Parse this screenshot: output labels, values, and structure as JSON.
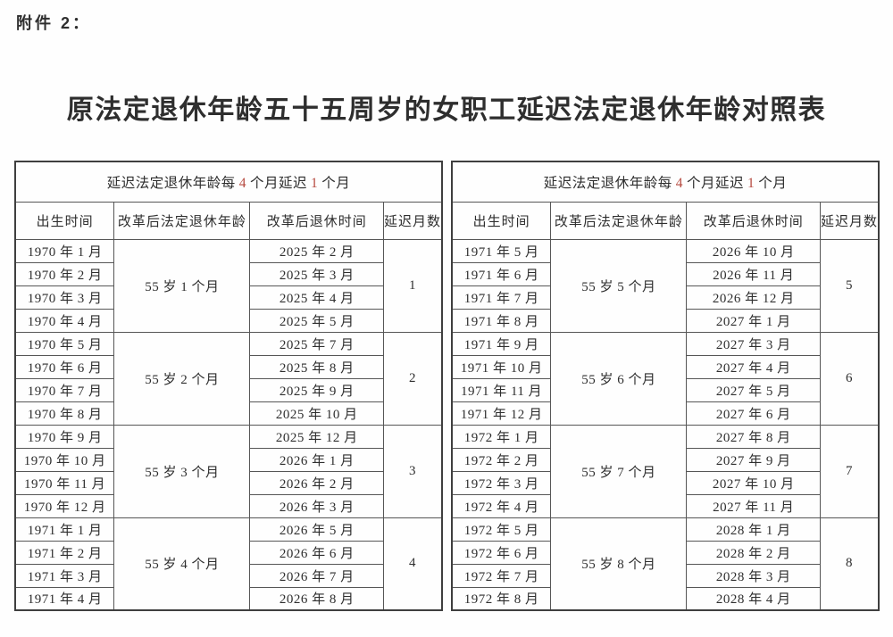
{
  "attachment_label": "附件 2：",
  "title": "原法定退休年龄五十五周岁的女职工延迟法定退休年龄对照表",
  "accent_color": "#b6493f",
  "tables": [
    {
      "header": {
        "part1": "延迟法定退休年龄每",
        "num1": "4",
        "part2": "个月延迟",
        "num2": "1",
        "part3": "个月"
      },
      "columns": [
        "出生时间",
        "改革后法定退休年龄",
        "改革后退休时间",
        "延迟月数"
      ],
      "groups": [
        {
          "births": [
            "1970 年 1 月",
            "1970 年 2 月",
            "1970 年 3 月",
            "1970 年 4 月"
          ],
          "age": "55 岁 1 个月",
          "retire": [
            "2025 年 2 月",
            "2025 年 3 月",
            "2025 年 4 月",
            "2025 年 5 月"
          ],
          "delay": "1"
        },
        {
          "births": [
            "1970 年 5 月",
            "1970 年 6 月",
            "1970 年 7 月",
            "1970 年 8 月"
          ],
          "age": "55 岁 2 个月",
          "retire": [
            "2025 年 7 月",
            "2025 年 8 月",
            "2025 年 9 月",
            "2025 年 10 月"
          ],
          "delay": "2"
        },
        {
          "births": [
            "1970 年 9 月",
            "1970 年 10 月",
            "1970 年 11 月",
            "1970 年 12 月"
          ],
          "age": "55 岁 3 个月",
          "retire": [
            "2025 年 12 月",
            "2026 年 1 月",
            "2026 年 2 月",
            "2026 年 3 月"
          ],
          "delay": "3"
        },
        {
          "births": [
            "1971 年 1 月",
            "1971 年 2 月",
            "1971 年 3 月",
            "1971 年 4 月"
          ],
          "age": "55 岁 4 个月",
          "retire": [
            "2026 年 5 月",
            "2026 年 6 月",
            "2026 年 7 月",
            "2026 年 8 月"
          ],
          "delay": "4"
        }
      ]
    },
    {
      "header": {
        "part1": "延迟法定退休年龄每",
        "num1": "4",
        "part2": "个月延迟",
        "num2": "1",
        "part3": "个月"
      },
      "columns": [
        "出生时间",
        "改革后法定退休年龄",
        "改革后退休时间",
        "延迟月数"
      ],
      "groups": [
        {
          "births": [
            "1971 年 5 月",
            "1971 年 6 月",
            "1971 年 7 月",
            "1971 年 8 月"
          ],
          "age": "55 岁 5 个月",
          "retire": [
            "2026 年 10 月",
            "2026 年 11 月",
            "2026 年 12 月",
            "2027 年 1 月"
          ],
          "delay": "5"
        },
        {
          "births": [
            "1971 年 9 月",
            "1971 年 10 月",
            "1971 年 11 月",
            "1971 年 12 月"
          ],
          "age": "55 岁 6 个月",
          "retire": [
            "2027 年 3 月",
            "2027 年 4 月",
            "2027 年 5 月",
            "2027 年 6 月"
          ],
          "delay": "6"
        },
        {
          "births": [
            "1972 年 1 月",
            "1972 年 2 月",
            "1972 年 3 月",
            "1972 年 4 月"
          ],
          "age": "55 岁 7 个月",
          "retire": [
            "2027 年 8 月",
            "2027 年 9 月",
            "2027 年 10 月",
            "2027 年 11 月"
          ],
          "delay": "7"
        },
        {
          "births": [
            "1972 年 5 月",
            "1972 年 6 月",
            "1972 年 7 月",
            "1972 年 8 月"
          ],
          "age": "55 岁 8 个月",
          "retire": [
            "2028 年 1 月",
            "2028 年 2 月",
            "2028 年 3 月",
            "2028 年 4 月"
          ],
          "delay": "8"
        }
      ]
    }
  ]
}
